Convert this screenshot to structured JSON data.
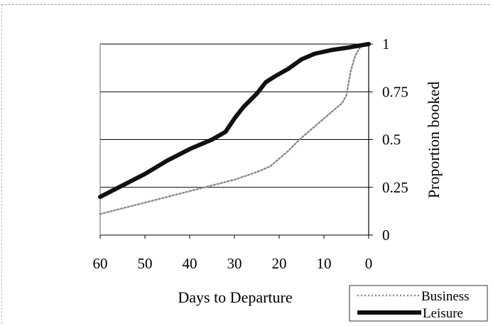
{
  "chart_data": {
    "type": "line",
    "title": "",
    "xlabel": "Days to Departure",
    "ylabel": "Proportion booked",
    "xlim": [
      60,
      0
    ],
    "ylim": [
      0,
      1
    ],
    "x_ticks": [
      "60",
      "50",
      "40",
      "30",
      "20",
      "10",
      "0"
    ],
    "y_ticks": [
      "0",
      "0.25",
      "0.5",
      "0.75",
      "1"
    ],
    "y_axis_side": "right",
    "grid": "horizontal",
    "legend_position": "bottom-right",
    "series": [
      {
        "name": "Business",
        "style": "dotted-gray",
        "color": "#8c8c8c",
        "x": [
          60,
          55,
          50,
          45,
          40,
          35,
          30,
          25,
          22,
          20,
          18,
          15,
          12,
          10,
          8,
          6,
          5,
          4,
          3,
          2
        ],
        "y": [
          0.11,
          0.14,
          0.17,
          0.2,
          0.23,
          0.26,
          0.29,
          0.33,
          0.36,
          0.4,
          0.44,
          0.51,
          0.57,
          0.61,
          0.65,
          0.69,
          0.73,
          0.86,
          0.94,
          0.98
        ]
      },
      {
        "name": "Leisure",
        "style": "thick-solid",
        "color": "#111111",
        "x": [
          60,
          55,
          50,
          45,
          40,
          35,
          32,
          30,
          28,
          25,
          23,
          21,
          18,
          15,
          12,
          10,
          8,
          5,
          0
        ],
        "y": [
          0.2,
          0.26,
          0.32,
          0.39,
          0.45,
          0.5,
          0.54,
          0.61,
          0.67,
          0.74,
          0.8,
          0.83,
          0.87,
          0.92,
          0.95,
          0.96,
          0.97,
          0.98,
          1.0
        ]
      }
    ]
  }
}
